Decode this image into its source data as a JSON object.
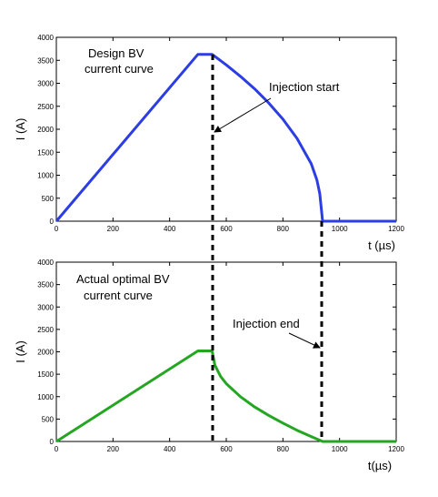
{
  "chart_data": [
    {
      "type": "line",
      "ylabel": "I (A)",
      "xlabel": "t (µs)",
      "xlim": [
        0,
        1200
      ],
      "ylim": [
        0,
        4000
      ],
      "xticks": [
        "0",
        "200",
        "400",
        "600",
        "800",
        "1000",
        "1200"
      ],
      "yticks": [
        "0",
        "500",
        "1000",
        "1500",
        "2000",
        "2500",
        "3000",
        "3500",
        "4000"
      ],
      "grid": false,
      "annotations": [
        "Design BV",
        "current curve",
        "Injection start"
      ],
      "series": [
        {
          "color": "#2b3de3",
          "x": [
            0,
            500,
            550,
            600,
            650,
            700,
            750,
            800,
            850,
            900,
            920,
            930,
            940,
            950,
            1200
          ],
          "y": [
            0,
            3630,
            3630,
            3400,
            3150,
            2880,
            2570,
            2220,
            1800,
            1250,
            900,
            600,
            0,
            0,
            0
          ]
        }
      ]
    },
    {
      "type": "line",
      "ylabel": "I (A)",
      "xlabel": "t(µs)",
      "xlim": [
        0,
        1200
      ],
      "ylim": [
        0,
        4000
      ],
      "xticks": [
        "0",
        "200",
        "400",
        "600",
        "800",
        "1000",
        "1200"
      ],
      "yticks": [
        "0",
        "500",
        "1000",
        "1500",
        "2000",
        "2500",
        "3000",
        "3500",
        "4000"
      ],
      "grid": false,
      "annotations": [
        "Actual optimal BV",
        "current curve",
        "Injection end"
      ],
      "series": [
        {
          "color": "#25a623",
          "x": [
            0,
            500,
            550,
            560,
            580,
            600,
            650,
            700,
            750,
            800,
            850,
            900,
            940,
            1200
          ],
          "y": [
            0,
            2020,
            2020,
            1700,
            1450,
            1290,
            1000,
            770,
            580,
            410,
            250,
            110,
            0,
            0
          ]
        }
      ]
    }
  ],
  "colors": {
    "design": "#2b3de3",
    "actual": "#25a623",
    "marker": "#000000"
  }
}
